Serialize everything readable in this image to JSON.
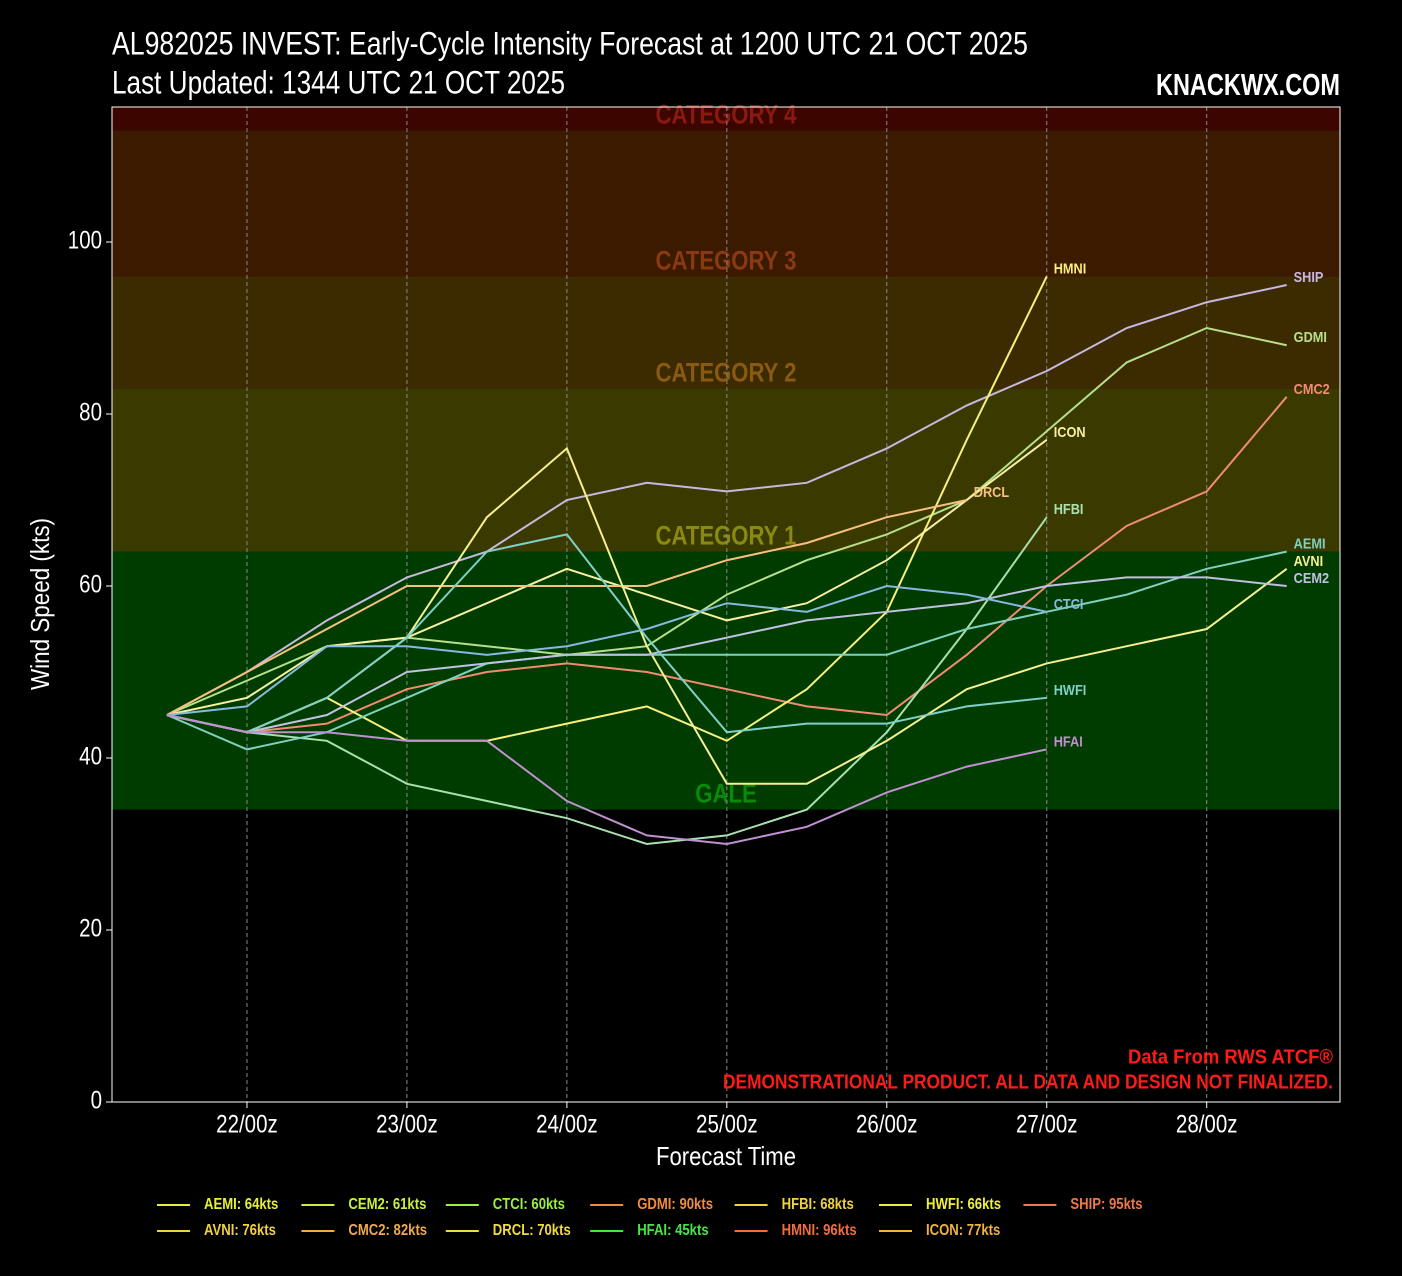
{
  "chart_data": {
    "type": "line",
    "title": "AL982025 INVEST: Early-Cycle Intensity Forecast at 1200 UTC 21 OCT 2025",
    "subtitle": "Last Updated: 1344 UTC 21 OCT 2025",
    "brand": "KNACKWX.COM",
    "credit": "Data From RWS ATCF®",
    "disclaimer": "DEMONSTRATIONAL PRODUCT. ALL DATA AND DESIGN NOT FINALIZED.",
    "xlabel": "Forecast Time",
    "ylabel": "Wind Speed (kts)",
    "xlim": [
      -8.25,
      176
    ],
    "ylim": [
      0,
      115.7
    ],
    "xticks": [
      {
        "value": 12,
        "label": "22/00z"
      },
      {
        "value": 36,
        "label": "23/00z"
      },
      {
        "value": 60,
        "label": "24/00z"
      },
      {
        "value": 84,
        "label": "25/00z"
      },
      {
        "value": 108,
        "label": "26/00z"
      },
      {
        "value": 132,
        "label": "27/00z"
      },
      {
        "value": 156,
        "label": "28/00z"
      }
    ],
    "yticks": [
      0,
      20,
      40,
      60,
      80,
      100
    ],
    "grid": "x",
    "bands": [
      {
        "label": "GALE",
        "from": 34,
        "to": 64,
        "fill": "#003c00",
        "text_color": "#0a8a0a"
      },
      {
        "label": "CATEGORY 1",
        "from": 64,
        "to": 83,
        "fill": "#3a3a00",
        "text_color": "#8a8a10"
      },
      {
        "label": "CATEGORY 2",
        "from": 83,
        "to": 96,
        "fill": "#3c2a00",
        "text_color": "#8a5a10"
      },
      {
        "label": "CATEGORY 3",
        "from": 96,
        "to": 113,
        "fill": "#3c1a00",
        "text_color": "#8a3a10"
      },
      {
        "label": "CATEGORY 4",
        "from": 113,
        "to": 115.7,
        "fill": "#3c0500",
        "text_color": "#8a1a10"
      }
    ],
    "x": [
      0,
      12,
      24,
      36,
      48,
      60,
      72,
      84,
      96,
      108,
      120,
      132,
      144,
      156,
      168
    ],
    "series": [
      {
        "name": "SHIP",
        "color": "#c8b8e0",
        "values": [
          45,
          50,
          56,
          61,
          64,
          70,
          72,
          71,
          72,
          76,
          81,
          85,
          90,
          93,
          95
        ]
      },
      {
        "name": "GDMI",
        "color": "#b8e08a",
        "values": [
          45,
          49,
          53,
          54,
          53,
          52,
          53,
          59,
          63,
          66,
          70,
          78,
          86,
          90,
          88
        ]
      },
      {
        "name": "CMC2",
        "color": "#f08c72",
        "values": [
          45,
          43,
          44,
          48,
          50,
          51,
          50,
          48,
          46,
          45,
          52,
          60,
          67,
          71,
          82
        ]
      },
      {
        "name": "HMNI",
        "color": "#f8f07c",
        "values": [
          45,
          43,
          47,
          42,
          42,
          44,
          46,
          42,
          48,
          57,
          77,
          96,
          null,
          null,
          null
        ]
      },
      {
        "name": "ICON",
        "color": "#f8f0a0",
        "values": [
          45,
          47,
          53,
          54,
          58,
          62,
          59,
          56,
          58,
          63,
          70,
          77,
          null,
          null,
          null
        ]
      },
      {
        "name": "DRCL",
        "color": "#f8c07c",
        "values": [
          45,
          50,
          55,
          60,
          60,
          60,
          60,
          63,
          65,
          68,
          70,
          null,
          null,
          null,
          null
        ]
      },
      {
        "name": "HFBI",
        "color": "#a8e0b0",
        "values": [
          45,
          43,
          42,
          37,
          35,
          33,
          30,
          31,
          34,
          43,
          55,
          68,
          null,
          null,
          null
        ]
      },
      {
        "name": "AVNI",
        "color": "#f8f090",
        "values": [
          45,
          43,
          47,
          54,
          68,
          76,
          53,
          37,
          37,
          42,
          48,
          51,
          53,
          55,
          62
        ]
      },
      {
        "name": "AEMI",
        "color": "#80d0c0",
        "values": [
          45,
          41,
          43,
          47,
          51,
          52,
          52,
          52,
          52,
          52,
          55,
          57,
          59,
          62,
          64
        ]
      },
      {
        "name": "CEM2",
        "color": "#c0c0e0",
        "values": [
          45,
          43,
          45,
          50,
          51,
          52,
          52,
          54,
          56,
          57,
          58,
          60,
          61,
          61,
          60
        ]
      },
      {
        "name": "CTCI",
        "color": "#88b8e0",
        "values": [
          45,
          46,
          53,
          53,
          52,
          53,
          55,
          58,
          57,
          60,
          59,
          57,
          null,
          null,
          null
        ]
      },
      {
        "name": "HWFI",
        "color": "#80d0c8",
        "values": [
          45,
          43,
          47,
          54,
          64,
          66,
          54,
          43,
          44,
          44,
          46,
          47,
          null,
          null,
          null
        ]
      },
      {
        "name": "HFAI",
        "color": "#c090d0",
        "values": [
          45,
          43,
          43,
          42,
          42,
          35,
          31,
          30,
          32,
          36,
          39,
          41,
          null,
          null,
          null
        ]
      }
    ],
    "legend": [
      {
        "label": "AEMI: 64kts",
        "color": "#e6f03c"
      },
      {
        "label": "AVNI: 76kts",
        "color": "#f0d23c"
      },
      {
        "label": "CEM2: 61kts",
        "color": "#c8f03c"
      },
      {
        "label": "CMC2: 82kts",
        "color": "#f0aa46"
      },
      {
        "label": "CTCI: 60kts",
        "color": "#9bf03c"
      },
      {
        "label": "DRCL: 70kts",
        "color": "#f0dc3c"
      },
      {
        "label": "GDMI: 90kts",
        "color": "#f08c3c"
      },
      {
        "label": "HFAI: 45kts",
        "color": "#46e646"
      },
      {
        "label": "HFBI: 68kts",
        "color": "#f0d23c"
      },
      {
        "label": "HMNI: 96kts",
        "color": "#f06e3c"
      },
      {
        "label": "HWFI: 66kts",
        "color": "#f0f03c"
      },
      {
        "label": "ICON: 77kts",
        "color": "#f0b43c"
      },
      {
        "label": "SHIP: 95kts",
        "color": "#f07846"
      }
    ]
  }
}
